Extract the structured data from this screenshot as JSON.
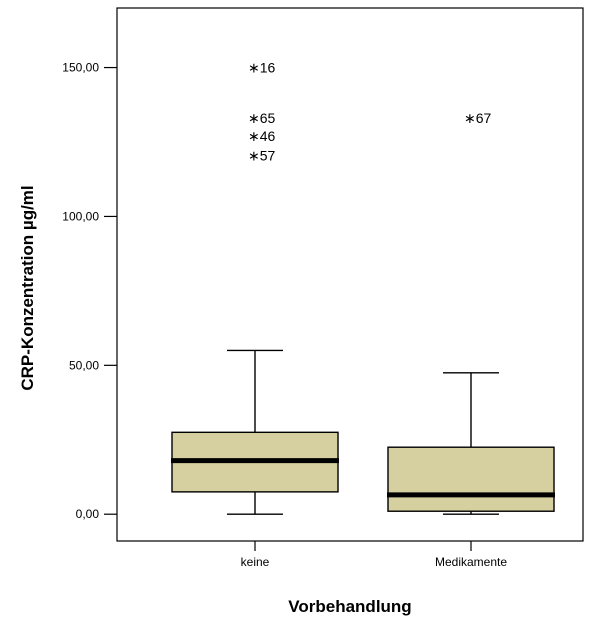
{
  "chart_data": {
    "type": "boxplot",
    "xlabel": "Vorbehandlung",
    "ylabel": "CRP-Konzentration µg/ml",
    "ylim": [
      -9,
      170
    ],
    "yticks": [
      0,
      50,
      100,
      150
    ],
    "ytick_labels": [
      "0,00",
      "50,00",
      "100,00",
      "150,00"
    ],
    "box_color": "#d6d0a0",
    "categories": [
      "keine",
      "Medikamente"
    ],
    "boxes": [
      {
        "category": "keine",
        "whisker_low": 0,
        "q1": 7.5,
        "median": 18,
        "q3": 27.5,
        "whisker_high": 55,
        "outliers": [
          {
            "label": "16",
            "value": 150
          },
          {
            "label": "65",
            "value": 133
          },
          {
            "label": "46",
            "value": 127
          },
          {
            "label": "57",
            "value": 120.5
          }
        ]
      },
      {
        "category": "Medikamente",
        "whisker_low": 0,
        "q1": 1,
        "median": 6.5,
        "q3": 22.5,
        "whisker_high": 47.5,
        "outliers": [
          {
            "label": "67",
            "value": 133
          }
        ]
      }
    ]
  }
}
